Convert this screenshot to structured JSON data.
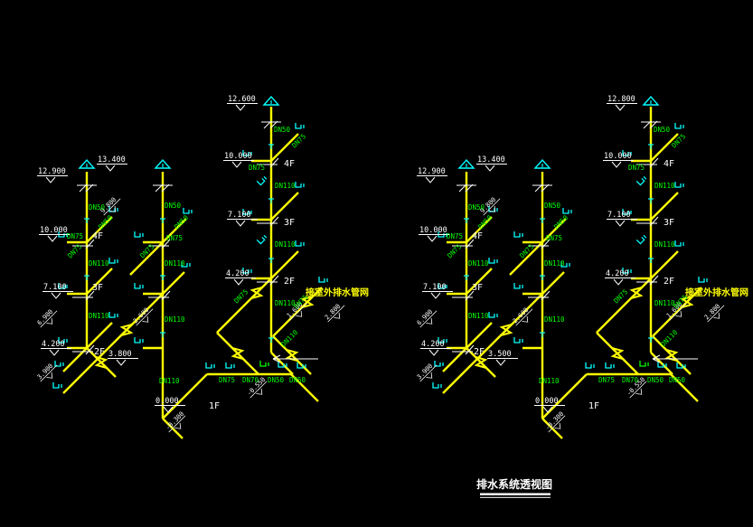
{
  "title": {
    "text": "排水系统透视图"
  },
  "colors": {
    "background": "#000000",
    "pipe": "#ffff00",
    "size_label": "#00ff00",
    "elevation_text": "#ffffff",
    "fixture_symbol": "#00ffff"
  },
  "diagrams": [
    {
      "side": "left",
      "labels": {
        "note": "接室外排水管网",
        "roof_a_left": "12.900",
        "roof_a_right": "13.400",
        "roof_c": "12.600",
        "a4_elev": "10.000",
        "a3_elev": "7.100",
        "a2_elev": "4.200",
        "c4_elev": "10.000",
        "c3_elev": "7.100",
        "c2_elev": "4.200",
        "a4_floor": "4F",
        "a3_floor": "3F",
        "a2_floor": "2F",
        "c4_floor": "4F",
        "c3_floor": "3F",
        "c2_floor": "2F",
        "f1_floor": "1F",
        "f1_elev": "0.000",
        "a2_note": "3.800",
        "rot_a4": "9.800",
        "rot_a3": "6.900",
        "rot_a2": "3.900",
        "rot_b3": "2.600",
        "rot_mid1": "1.600",
        "rot_mid2": "2.800",
        "rot_b1": "-0.300",
        "rot_c1": "-0.550",
        "a_dn50": "DN50",
        "a_dn50d": "DN50",
        "a_dn75": "DN75",
        "a_dn75d": "DN75",
        "a_dn110a": "DN110",
        "a_dn110b": "DN110",
        "b_dn50": "DN50",
        "b_dn50d": "DN50",
        "b_dn75": "DN75",
        "b_dn75d": "DN75",
        "b_dn110a": "DN110",
        "b_dn110b": "DN110",
        "b_dn110c": "DN110",
        "c_dn50": "DN50",
        "c_dn75": "DN75",
        "c_dn75d": "DN75",
        "c_dn110a": "DN110",
        "c_dn110b": "DN110",
        "c_dn110c": "DN110",
        "mid_dn75a": "DN75",
        "mid_dn75b": "DN75",
        "mid_dn110": "DN110",
        "run_dn75": "DN75",
        "run_dn70": "DN70",
        "run_dn50a": "DN50",
        "run_dn50b": "DN50"
      }
    },
    {
      "side": "right",
      "labels": {
        "note": "接室外排水管网",
        "roof_a_left": "12.900",
        "roof_a_right": "13.400",
        "roof_c": "12.800",
        "a4_elev": "10.000",
        "a3_elev": "7.100",
        "a2_elev": "4.200",
        "c4_elev": "10.000",
        "c3_elev": "7.100",
        "c2_elev": "4.200",
        "a4_floor": "4F",
        "a3_floor": "3F",
        "a2_floor": "2F",
        "c4_floor": "4F",
        "c3_floor": "3F",
        "c2_floor": "2F",
        "f1_floor": "1F",
        "f1_elev": "0.000",
        "a2_note": "3.500",
        "rot_a4": "9.800",
        "rot_a3": "6.900",
        "rot_a2": "3.900",
        "rot_b3": "2.600",
        "rot_mid1": "1.600",
        "rot_mid2": "2.800",
        "rot_b1": "-0.300",
        "rot_c1": "-0.550",
        "a_dn50": "DN50",
        "a_dn50d": "DN50",
        "a_dn75": "DN75",
        "a_dn75d": "DN75",
        "a_dn110a": "DN110",
        "a_dn110b": "DN110",
        "b_dn50": "DN50",
        "b_dn50d": "DN50",
        "b_dn75": "DN75",
        "b_dn75d": "DN75",
        "b_dn110a": "DN110",
        "b_dn110b": "DN110",
        "b_dn110c": "DN110",
        "c_dn50": "DN50",
        "c_dn75": "DN75",
        "c_dn75d": "DN75",
        "c_dn110a": "DN110",
        "c_dn110b": "DN110",
        "c_dn110c": "DN110",
        "mid_dn75a": "DN75",
        "mid_dn75b": "DN75",
        "mid_dn110": "DN110",
        "run_dn75": "DN75",
        "run_dn70": "DN70",
        "run_dn50a": "DN50",
        "run_dn50b": "DN50"
      }
    }
  ]
}
